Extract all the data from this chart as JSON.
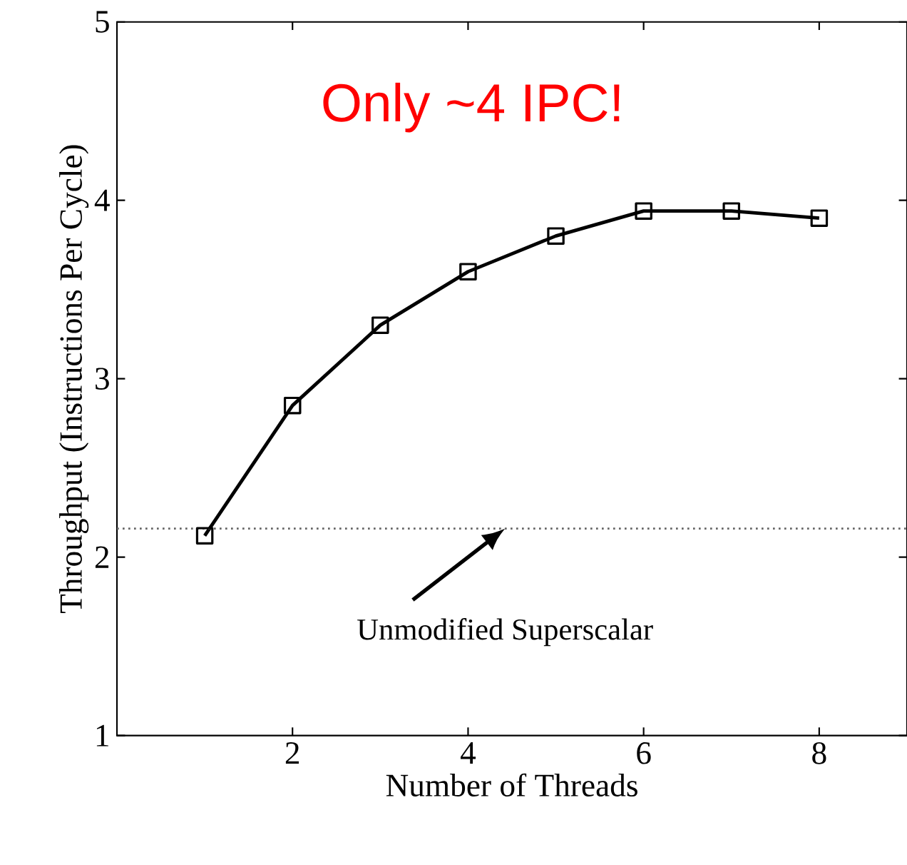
{
  "chart_data": {
    "type": "line",
    "xlabel": "Number of Threads",
    "ylabel": "Throughput (Instructions Per Cycle)",
    "x": [
      1,
      2,
      3,
      4,
      5,
      6,
      7,
      8
    ],
    "series": [
      {
        "color": "#000000",
        "values": [
          2.12,
          2.85,
          3.3,
          3.6,
          3.8,
          3.94,
          3.94,
          3.9
        ]
      }
    ],
    "xlim": [
      0,
      9
    ],
    "ylim": [
      1,
      5
    ],
    "xticks": [
      2,
      4,
      6,
      8
    ],
    "yticks": [
      1,
      2,
      3,
      4,
      5
    ],
    "marker": "square",
    "line_style": "solid",
    "ref_lines": [
      {
        "axis": "y",
        "value": 2.16,
        "color": "#666666",
        "line_style": "dotted"
      }
    ],
    "annotations": [
      "Only ~4 IPC!",
      {
        "text": "Unmodified Superscalar",
        "x": 4.42,
        "y": 2.16
      }
    ]
  }
}
